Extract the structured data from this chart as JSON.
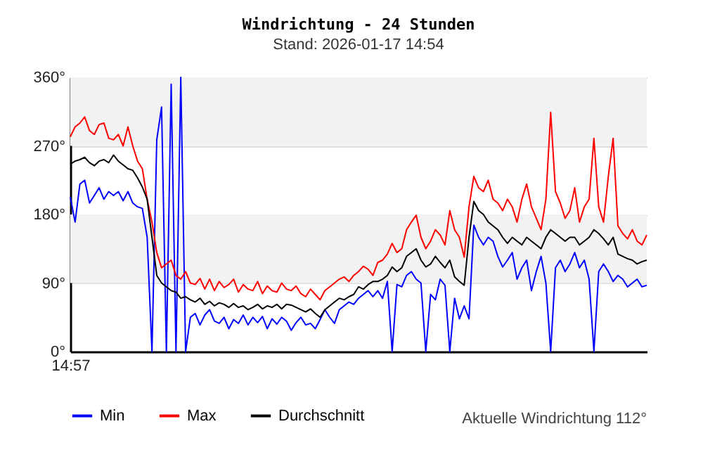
{
  "chart_data": {
    "type": "line",
    "title": "Windrichtung - 24 Stunden",
    "subtitle": "Stand: 2026-01-17 14:54",
    "annotations": [
      "Aktuelle Windrichtung 112°"
    ],
    "categories": [
      "14:57",
      null,
      null,
      null,
      null,
      null,
      null,
      null,
      null,
      null,
      null,
      null,
      null,
      null,
      null,
      null,
      null,
      null,
      null,
      null,
      null,
      null,
      null,
      null,
      null,
      null,
      null,
      null,
      null,
      null,
      null,
      null,
      null,
      null,
      null,
      null,
      null,
      null,
      null,
      null,
      null,
      null,
      null,
      null,
      null,
      null,
      null,
      null,
      null,
      null,
      null,
      null,
      null,
      null,
      null,
      null,
      null,
      null,
      null,
      null,
      null,
      null,
      null,
      null,
      null,
      null,
      null,
      null,
      null,
      null,
      null,
      null,
      null,
      null,
      null,
      null,
      null,
      null,
      null,
      null,
      null,
      null,
      null,
      null,
      null,
      null,
      null,
      null,
      null,
      null,
      null,
      null,
      null,
      null,
      null,
      null,
      null,
      null,
      null,
      null,
      null,
      null,
      null,
      null,
      null,
      null,
      null,
      null,
      null,
      null,
      null,
      null,
      null,
      null,
      null,
      null,
      null,
      null,
      null,
      null,
      null
    ],
    "series": [
      {
        "name": "Min",
        "color": "#0000ff",
        "values": [
          203,
          170,
          220,
          225,
          195,
          205,
          215,
          200,
          210,
          205,
          210,
          198,
          210,
          195,
          190,
          188,
          150,
          0,
          278,
          321,
          0,
          351,
          0,
          360,
          0,
          45,
          50,
          35,
          48,
          55,
          40,
          37,
          45,
          30,
          42,
          37,
          48,
          35,
          45,
          38,
          46,
          30,
          43,
          36,
          45,
          40,
          28,
          38,
          45,
          35,
          37,
          30,
          42,
          55,
          45,
          37,
          55,
          60,
          65,
          62,
          70,
          75,
          80,
          72,
          80,
          70,
          92,
          0,
          88,
          85,
          100,
          105,
          95,
          90,
          0,
          75,
          68,
          95,
          87,
          0,
          70,
          43,
          60,
          43,
          166,
          150,
          140,
          150,
          145,
          125,
          111,
          120,
          130,
          95,
          110,
          120,
          80,
          105,
          125,
          90,
          0,
          110,
          120,
          105,
          115,
          130,
          110,
          120,
          95,
          0,
          105,
          115,
          105,
          92,
          100,
          95,
          85,
          90,
          95,
          85,
          87
        ]
      },
      {
        "name": "Max",
        "color": "#ff0000",
        "values": [
          282,
          295,
          300,
          308,
          290,
          285,
          298,
          300,
          280,
          278,
          285,
          270,
          295,
          270,
          250,
          240,
          200,
          170,
          130,
          110,
          115,
          120,
          100,
          95,
          105,
          90,
          88,
          96,
          82,
          95,
          80,
          92,
          84,
          88,
          95,
          78,
          88,
          82,
          80,
          92,
          76,
          86,
          80,
          78,
          90,
          82,
          80,
          86,
          76,
          72,
          82,
          75,
          68,
          80,
          85,
          90,
          95,
          98,
          92,
          100,
          105,
          112,
          108,
          100,
          117,
          120,
          128,
          142,
          130,
          135,
          160,
          170,
          179,
          150,
          135,
          145,
          160,
          153,
          140,
          185,
          160,
          150,
          124,
          190,
          230,
          215,
          210,
          225,
          200,
          195,
          185,
          200,
          190,
          170,
          200,
          220,
          190,
          175,
          160,
          200,
          314,
          210,
          195,
          175,
          185,
          215,
          170,
          190,
          200,
          280,
          190,
          170,
          230,
          280,
          165,
          155,
          148,
          160,
          145,
          140,
          153
        ]
      },
      {
        "name": "Durchschnitt",
        "color": "#000000",
        "values": [
          246,
          250,
          252,
          255,
          248,
          244,
          250,
          252,
          248,
          258,
          250,
          245,
          240,
          238,
          228,
          216,
          200,
          150,
          100,
          90,
          85,
          80,
          78,
          70,
          72,
          68,
          65,
          70,
          62,
          66,
          60,
          64,
          62,
          58,
          63,
          58,
          60,
          55,
          58,
          62,
          56,
          60,
          58,
          62,
          56,
          62,
          61,
          58,
          55,
          52,
          56,
          50,
          45,
          55,
          60,
          65,
          70,
          68,
          72,
          75,
          85,
          82,
          88,
          92,
          92,
          95,
          100,
          111,
          105,
          110,
          125,
          130,
          135,
          120,
          111,
          115,
          125,
          117,
          110,
          120,
          98,
          92,
          87,
          150,
          197,
          185,
          180,
          170,
          165,
          160,
          150,
          142,
          150,
          145,
          140,
          150,
          145,
          140,
          135,
          150,
          160,
          155,
          150,
          145,
          150,
          150,
          140,
          145,
          150,
          160,
          155,
          148,
          140,
          150,
          128,
          125,
          122,
          120,
          115,
          118,
          120
        ]
      }
    ],
    "ylim": [
      0,
      360
    ],
    "yticks": [
      {
        "value": 0,
        "label": "0°"
      },
      {
        "value": 90,
        "label": "90°"
      },
      {
        "value": 180,
        "label": "180°"
      },
      {
        "value": 270,
        "label": "270°"
      },
      {
        "value": 360,
        "label": "360°"
      }
    ],
    "bands": [
      {
        "axis": "y",
        "from": 90,
        "to": 180,
        "color": "#f2f2f2"
      },
      {
        "axis": "y",
        "from": 270,
        "to": 360,
        "color": "#f2f2f2"
      }
    ],
    "grid": "y",
    "legend": "bottom"
  }
}
